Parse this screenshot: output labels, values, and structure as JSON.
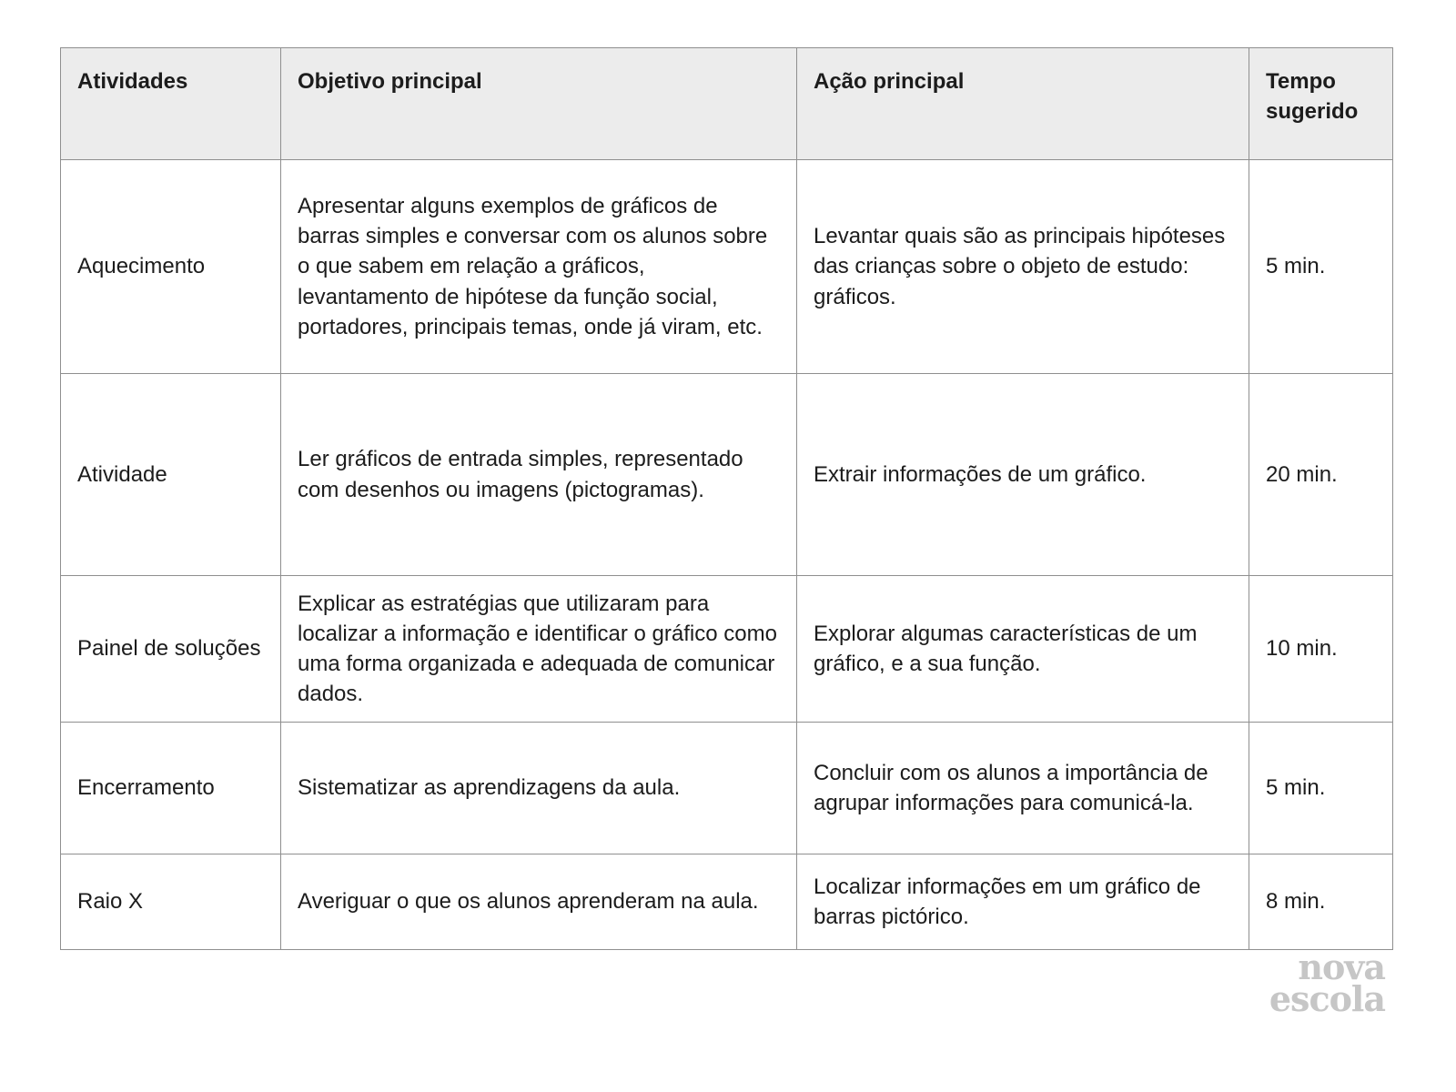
{
  "table": {
    "headers": [
      "Atividades",
      "Objetivo principal",
      "Ação principal",
      "Tempo sugerido"
    ],
    "rows": [
      {
        "atividade": "Aquecimento",
        "objetivo": "Apresentar alguns exemplos de gráficos de barras simples e conversar com os alunos sobre o que sabem em relação a gráficos, levantamento de hipótese da função social, portadores, principais temas, onde já viram, etc.",
        "acao": "Levantar quais são as principais hipóteses das crianças sobre o objeto de estudo: gráficos.",
        "tempo": "5 min."
      },
      {
        "atividade": "Atividade",
        "objetivo": "Ler gráficos de entrada simples, representado com desenhos ou imagens (pictogramas).",
        "acao": "Extrair informações de um gráfico.",
        "tempo": "20 min."
      },
      {
        "atividade": "Painel de soluções",
        "objetivo": "Explicar as estratégias que utilizaram para localizar a informação e identificar o gráfico como uma forma organizada e adequada de comunicar dados.",
        "acao": "Explorar algumas características de um gráfico, e a sua função.",
        "tempo": "10 min."
      },
      {
        "atividade": "Encerramento",
        "objetivo": "Sistematizar as aprendizagens da aula.",
        "acao": "Concluir com os alunos a importância de agrupar informações para comunicá-la.",
        "tempo": "5 min."
      },
      {
        "atividade": "Raio X",
        "objetivo": "Averiguar o que os alunos aprenderam na aula.",
        "acao": "Localizar informações em um gráfico de barras pictórico.",
        "tempo": "8 min."
      }
    ]
  },
  "logo": {
    "line1": "nova",
    "line2": "escola"
  },
  "colors": {
    "header_bg": "#ececec",
    "border": "#8f8f8f",
    "text": "#1c1c1c",
    "logo": "#c6c6c6"
  }
}
